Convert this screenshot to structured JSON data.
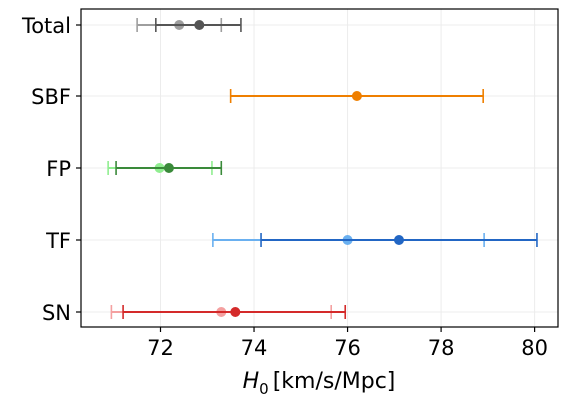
{
  "chart_data": {
    "type": "errorbar",
    "categories": [
      "Total",
      "SBF",
      "FP",
      "TF",
      "SN"
    ],
    "xlabel": "$H_0$ [km/s/Mpc]",
    "xlabel_parts": {
      "symbol": "H",
      "subscript": "0",
      "units": "[km/s/Mpc]"
    },
    "xlim": [
      70.3,
      80.5
    ],
    "xticks": [
      72,
      74,
      76,
      78,
      80
    ],
    "grid": true,
    "points": [
      {
        "category": "Total",
        "value": 72.4,
        "err_low": 71.5,
        "err_high": 73.3,
        "color": "#9e9e9e"
      },
      {
        "category": "Total",
        "value": 72.83,
        "err_low": 71.9,
        "err_high": 73.72,
        "color": "#555555"
      },
      {
        "category": "SBF",
        "value": 76.2,
        "err_low": 73.5,
        "err_high": 78.9,
        "color": "#ef7f00"
      },
      {
        "category": "FP",
        "value": 71.98,
        "err_low": 70.88,
        "err_high": 73.1,
        "color": "#90ee90"
      },
      {
        "category": "FP",
        "value": 72.18,
        "err_low": 71.05,
        "err_high": 73.3,
        "color": "#3a8a3a"
      },
      {
        "category": "TF",
        "value": 76.0,
        "err_low": 73.12,
        "err_high": 78.92,
        "color": "#6ab0f0"
      },
      {
        "category": "TF",
        "value": 77.1,
        "err_low": 74.15,
        "err_high": 80.05,
        "color": "#2266c4"
      },
      {
        "category": "SN",
        "value": 73.3,
        "err_low": 70.95,
        "err_high": 75.65,
        "color": "#f4a0a0"
      },
      {
        "category": "SN",
        "value": 73.6,
        "err_low": 71.2,
        "err_high": 75.95,
        "color": "#d42a2a"
      }
    ]
  }
}
